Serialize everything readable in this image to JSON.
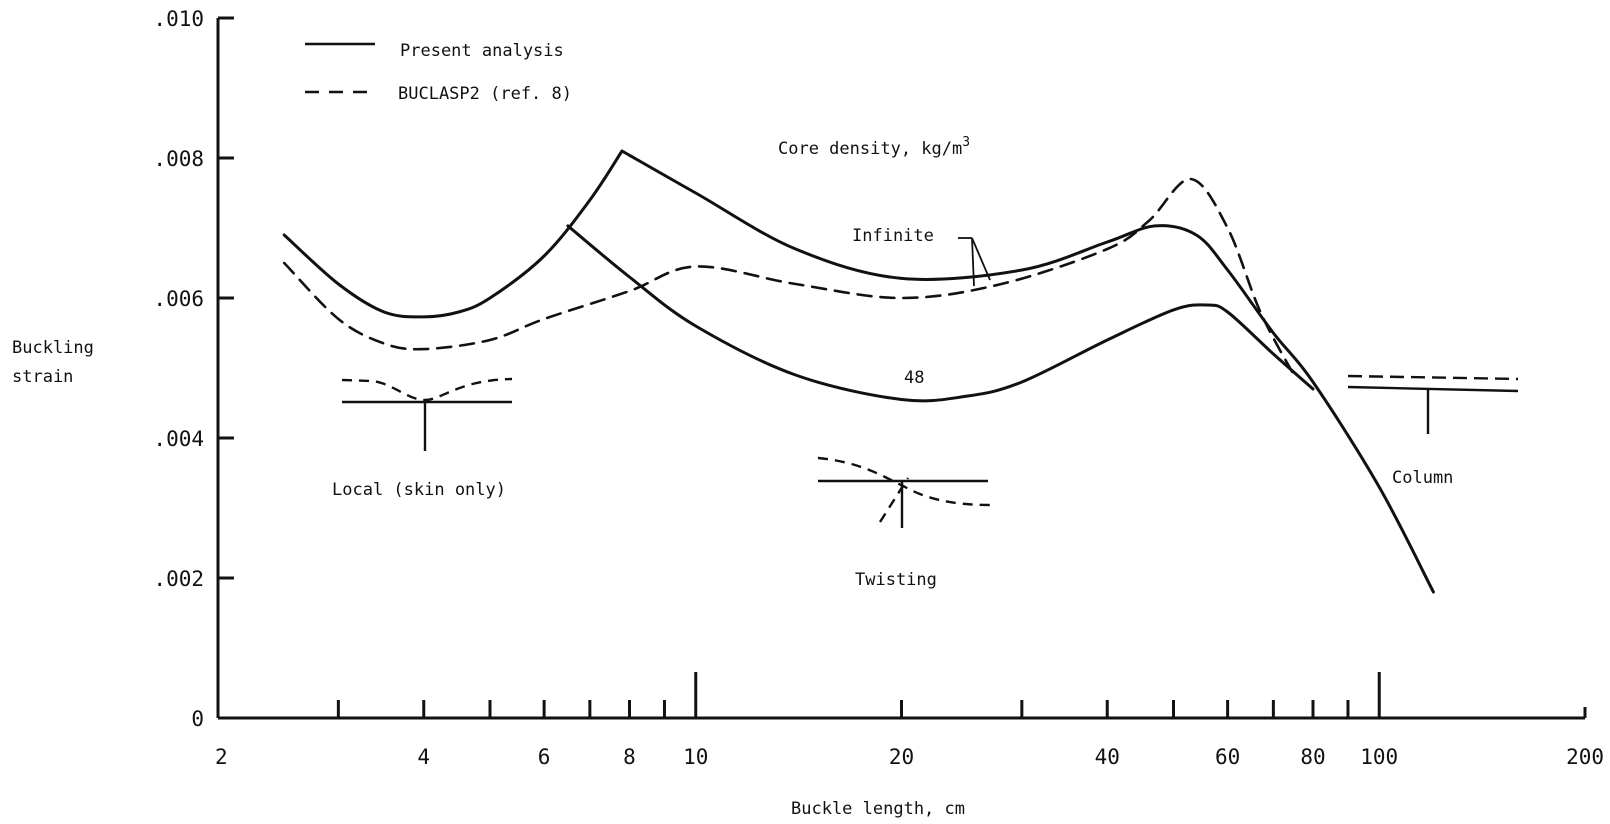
{
  "chart_data": {
    "type": "line",
    "x_scale": "log",
    "xlabel": "Buckle length, cm",
    "ylabel_line1": "Buckling",
    "ylabel_line2": "strain",
    "xlim": [
      2,
      200
    ],
    "ylim": [
      0,
      0.01
    ],
    "yticks": [
      {
        "value": 0.01,
        "label": ".010"
      },
      {
        "value": 0.008,
        "label": ".008"
      },
      {
        "value": 0.006,
        "label": ".006"
      },
      {
        "value": 0.004,
        "label": ".004"
      },
      {
        "value": 0.002,
        "label": ".002"
      },
      {
        "value": 0,
        "label": "0"
      }
    ],
    "xticks_labeled": [
      {
        "value": 2,
        "label": "2"
      },
      {
        "value": 4,
        "label": "4"
      },
      {
        "value": 6,
        "label": "6"
      },
      {
        "value": 8,
        "label": "8"
      },
      {
        "value": 10,
        "label": "10"
      },
      {
        "value": 20,
        "label": "20"
      },
      {
        "value": 40,
        "label": "40"
      },
      {
        "value": 60,
        "label": "60"
      },
      {
        "value": 80,
        "label": "80"
      },
      {
        "value": 100,
        "label": "100"
      },
      {
        "value": 200,
        "label": "200"
      }
    ],
    "xticks_minor": [
      3,
      4,
      5,
      6,
      7,
      8,
      9,
      20,
      30,
      40,
      50,
      60,
      70,
      80,
      90
    ],
    "xticks_major": [
      10,
      100
    ],
    "legend": {
      "solid": "Present analysis",
      "dashed": "BUCLASP2 (ref. 8)"
    },
    "core_density_title": "Core density, kg/m",
    "core_density_sup": "3",
    "curve_labels": {
      "infinite": "Infinite",
      "dens48": "48"
    },
    "mode_labels": {
      "local": "Local (skin only)",
      "twisting": "Twisting",
      "column": "Column"
    },
    "series": [
      {
        "key": "present_infinite",
        "style": "solid",
        "x": [
          2.5,
          3,
          3.5,
          4,
          4.5,
          5,
          6,
          7,
          7.8,
          10,
          14,
          20,
          30,
          40,
          47,
          54,
          60,
          70,
          80,
          100,
          120
        ],
        "y": [
          0.0069,
          0.0062,
          0.0058,
          0.00573,
          0.0058,
          0.006,
          0.0066,
          0.0074,
          0.0081,
          0.0075,
          0.0067,
          0.00628,
          0.0064,
          0.0068,
          0.00703,
          0.0069,
          0.0064,
          0.0055,
          0.0048,
          0.0033,
          0.0018
        ]
      },
      {
        "key": "present_48",
        "style": "solid",
        "x": [
          6.5,
          8,
          10,
          14,
          20,
          25,
          30,
          40,
          50,
          56,
          60,
          70,
          80
        ],
        "y": [
          0.00703,
          0.0063,
          0.0056,
          0.0049,
          0.00455,
          0.0046,
          0.0048,
          0.0054,
          0.00583,
          0.0059,
          0.0058,
          0.0052,
          0.0047
        ]
      },
      {
        "key": "buclasp2_infinite",
        "style": "dashed",
        "x": [
          2.5,
          3,
          3.5,
          4,
          5,
          6,
          8,
          10,
          14,
          20,
          28,
          40,
          46,
          53,
          60,
          67,
          75
        ],
        "y": [
          0.0065,
          0.0057,
          0.00535,
          0.00527,
          0.0054,
          0.0057,
          0.0061,
          0.00645,
          0.0062,
          0.006,
          0.0062,
          0.0067,
          0.0071,
          0.0077,
          0.007,
          0.0058,
          0.0049
        ]
      }
    ]
  }
}
